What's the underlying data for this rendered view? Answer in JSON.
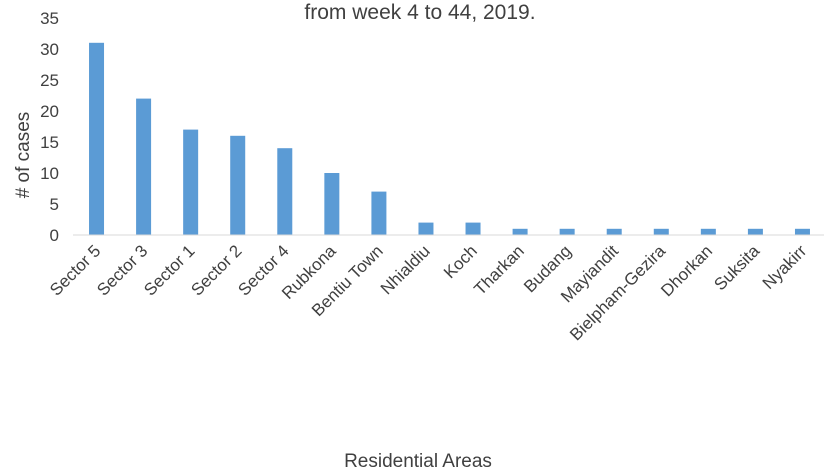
{
  "chart_data": {
    "type": "bar",
    "title": "from week 4 to 44, 2019.",
    "xlabel": "Residential Areas",
    "ylabel": "# of cases",
    "ylim": [
      0,
      35
    ],
    "yticks": [
      0,
      5,
      10,
      15,
      20,
      25,
      30,
      35
    ],
    "grid": false,
    "legend": "none",
    "bar_color": "#5b9bd5",
    "categories": [
      "Sector 5",
      "Sector 3",
      "Sector 1",
      "Sector 2",
      "Sector 4",
      "Rubkona",
      "Bentiu Town",
      "Nhialdiu",
      "Koch",
      "Tharkan",
      "Budang",
      "Mayiandit",
      "Bielpham-Gezira",
      "Dhorkan",
      "Suksita",
      "Nyakirr"
    ],
    "values": [
      31,
      22,
      17,
      16,
      14,
      10,
      7,
      2,
      2,
      1,
      1,
      1,
      1,
      1,
      1,
      1
    ]
  }
}
